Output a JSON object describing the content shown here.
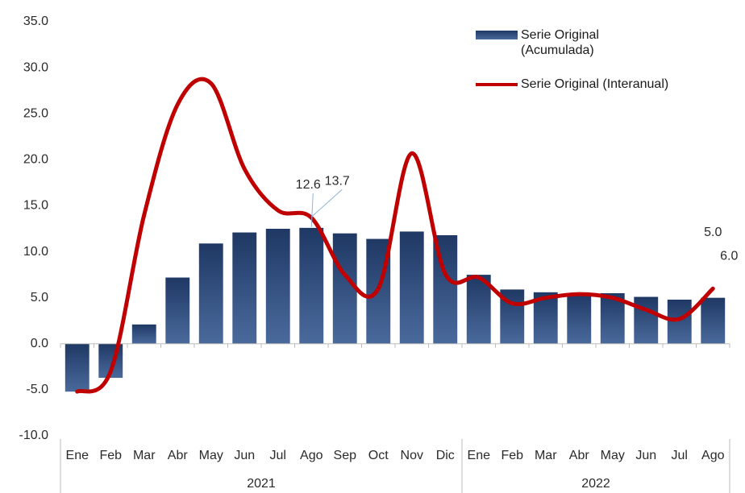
{
  "chart_data": {
    "type": "bar_line",
    "categories": [
      "Ene",
      "Feb",
      "Mar",
      "Abr",
      "May",
      "Jun",
      "Jul",
      "Ago",
      "Sep",
      "Oct",
      "Nov",
      "Dic",
      "Ene",
      "Feb",
      "Mar",
      "Abr",
      "May",
      "Jun",
      "Jul",
      "Ago"
    ],
    "groups": [
      {
        "label": "2021",
        "count": 12
      },
      {
        "label": "2022",
        "count": 8
      }
    ],
    "series": [
      {
        "name": "Serie Original (Acumulada)",
        "type": "bar",
        "color": "#1f3864",
        "values": [
          -5.2,
          -3.7,
          2.1,
          7.2,
          10.9,
          12.1,
          12.5,
          12.6,
          12.0,
          11.4,
          12.2,
          11.8,
          7.5,
          5.9,
          5.6,
          5.5,
          5.5,
          5.1,
          4.8,
          5.0
        ],
        "value_labels": [
          null,
          null,
          null,
          null,
          null,
          null,
          null,
          "12.6",
          null,
          null,
          null,
          null,
          null,
          null,
          null,
          null,
          null,
          null,
          null,
          "5.0"
        ]
      },
      {
        "name": "Serie Original (Interanual)",
        "type": "line",
        "color": "#c00000",
        "values": [
          -5.2,
          -3.0,
          14.0,
          26.0,
          28.3,
          19.0,
          14.5,
          13.7,
          7.5,
          6.0,
          20.7,
          7.6,
          7.2,
          4.4,
          5.0,
          5.4,
          5.0,
          3.7,
          2.7,
          6.0
        ],
        "value_labels": [
          null,
          null,
          null,
          null,
          null,
          null,
          null,
          "13.7",
          null,
          null,
          null,
          null,
          null,
          null,
          null,
          null,
          null,
          null,
          null,
          "6.0"
        ]
      }
    ],
    "ylim": [
      -10,
      35
    ],
    "yticks": [
      {
        "value": -10,
        "label": "-10.0"
      },
      {
        "value": -5,
        "label": "-5.0"
      },
      {
        "value": 0,
        "label": "0.0"
      },
      {
        "value": 5,
        "label": "5.0"
      },
      {
        "value": 10,
        "label": "10.0"
      },
      {
        "value": 15,
        "label": "15.0"
      },
      {
        "value": 20,
        "label": "20.0"
      },
      {
        "value": 25,
        "label": "25.0"
      },
      {
        "value": 30,
        "label": "30.0"
      },
      {
        "value": 35,
        "label": "35.0"
      }
    ],
    "grid": false,
    "legend": "top-right"
  }
}
